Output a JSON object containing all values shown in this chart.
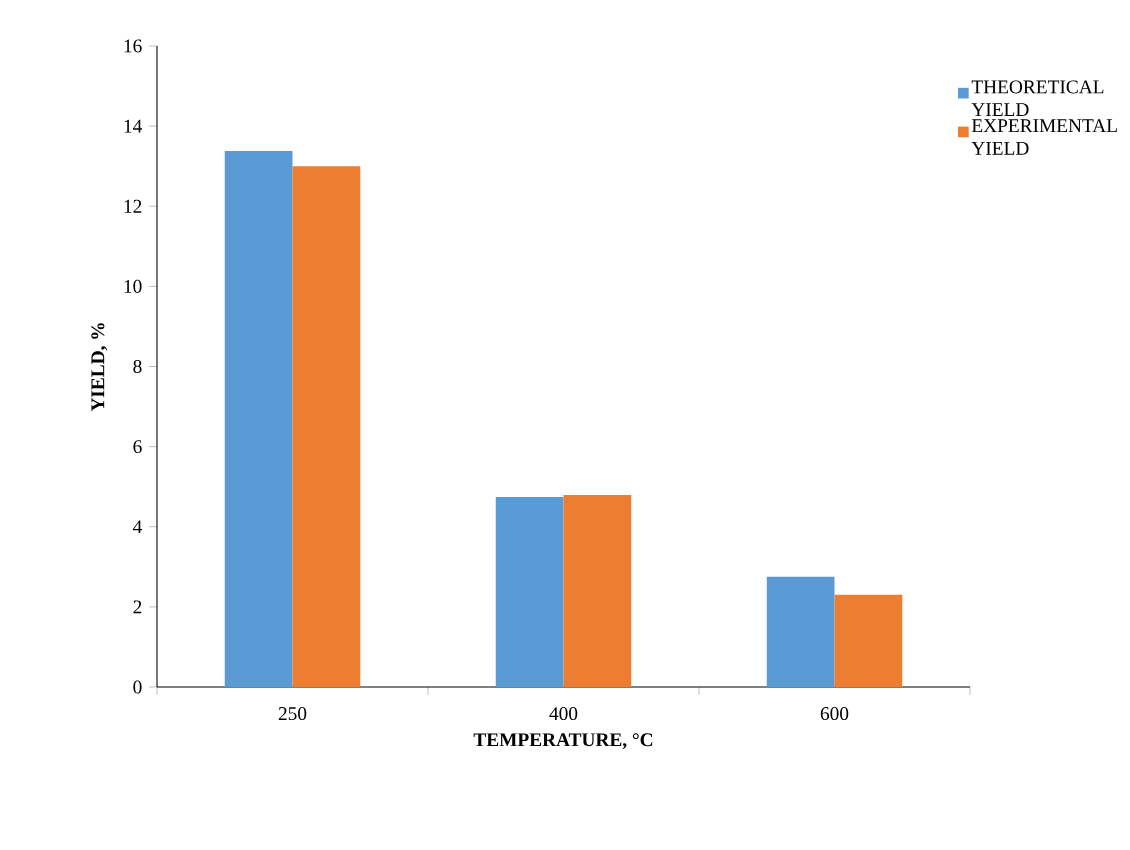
{
  "chart_data": {
    "type": "bar",
    "xlabel": "TEMPERATURE, °C",
    "ylabel": "YIELD, %",
    "categories": [
      "250",
      "400",
      "600"
    ],
    "series": [
      {
        "name": "THEORETICAL YIELD",
        "color": "#5b9bd5",
        "values": [
          13.38,
          4.74,
          2.75
        ]
      },
      {
        "name": "EXPERIMENTAL YIELD",
        "color": "#ed7d31",
        "values": [
          13.0,
          4.79,
          2.3
        ]
      }
    ],
    "ylim": [
      0,
      16
    ],
    "yticks": [
      0,
      2,
      4,
      6,
      8,
      10,
      12,
      14,
      16
    ],
    "legend": "top right"
  }
}
